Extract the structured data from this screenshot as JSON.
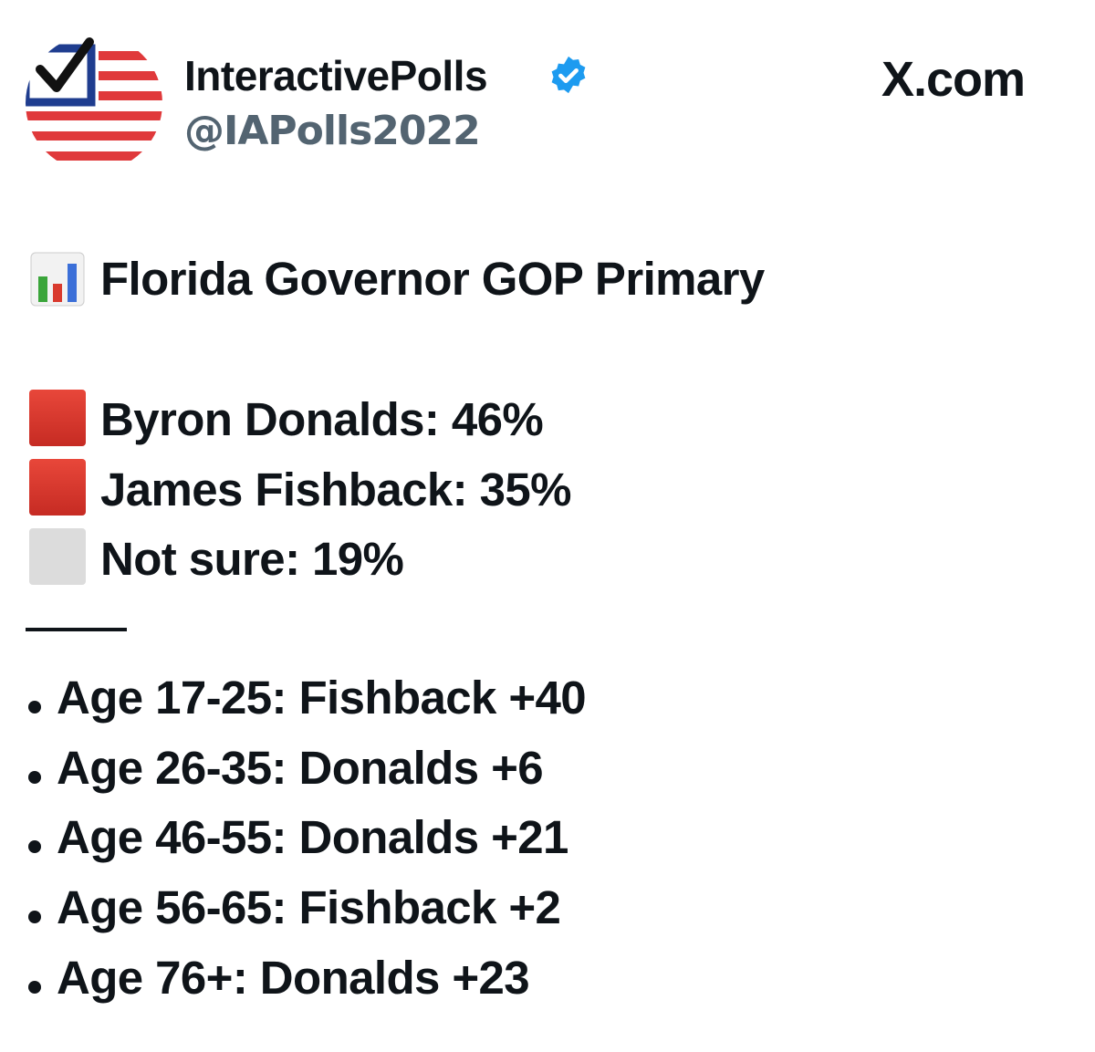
{
  "header": {
    "name": "InteractivePolls",
    "handle": "@IAPolls2022",
    "site": "X.com"
  },
  "post": {
    "title": "Florida Governor GOP Primary",
    "results": [
      "Byron Donalds: 46%",
      "James Fishback: 35%",
      "Not sure: 19%"
    ],
    "breakdown": [
      "Age 17-25: Fishback +40",
      "Age 26-35: Donalds +6",
      "Age 46-55: Donalds +21",
      "Age 56-65: Fishback +2",
      "Age 76+: Donalds +23"
    ]
  }
}
